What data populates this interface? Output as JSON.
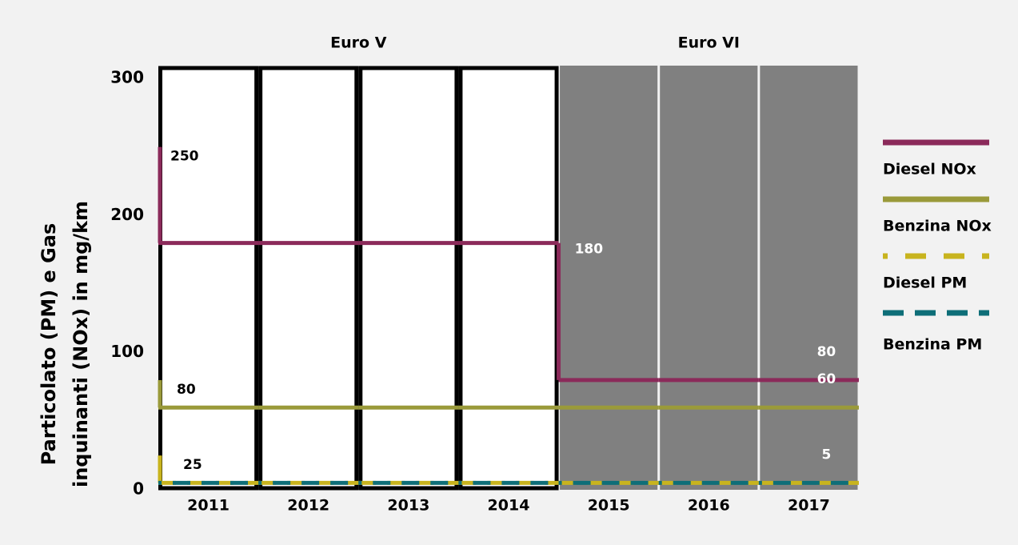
{
  "chart_data": {
    "type": "step",
    "y_label": [
      "Particolato (PM) e Gas",
      "inquinanti (NOx) in mg/km"
    ],
    "categories": [
      "2011",
      "2012",
      "2013",
      "2014",
      "2015",
      "2016",
      "2017"
    ],
    "periods": [
      {
        "name": "Euro V",
        "start": "2011",
        "end": "2014",
        "fill": "#ffffff"
      },
      {
        "name": "Euro VI",
        "start": "2015",
        "end": "2017",
        "fill": "#808080"
      }
    ],
    "series": [
      {
        "name": "Diesel NOx",
        "color": "#8b2a5a",
        "dashed": false,
        "previous": 250,
        "values": [
          180,
          180,
          180,
          180,
          80,
          80,
          80
        ]
      },
      {
        "name": "Benzina NOx",
        "color": "#9a9a3a",
        "dashed": false,
        "previous": 80,
        "values": [
          60,
          60,
          60,
          60,
          60,
          60,
          60
        ]
      },
      {
        "name": "Diesel PM",
        "color": "#c8b41e",
        "dashed": true,
        "previous": 25,
        "values": [
          5,
          5,
          5,
          5,
          5,
          5,
          5
        ]
      },
      {
        "name": "Benzina PM",
        "color": "#0e6e78",
        "dashed": true,
        "previous": null,
        "values": [
          5,
          5,
          5,
          5,
          5,
          5,
          5
        ]
      }
    ],
    "ylim": [
      0,
      300
    ],
    "yticks": [
      0,
      100,
      200,
      300
    ]
  }
}
